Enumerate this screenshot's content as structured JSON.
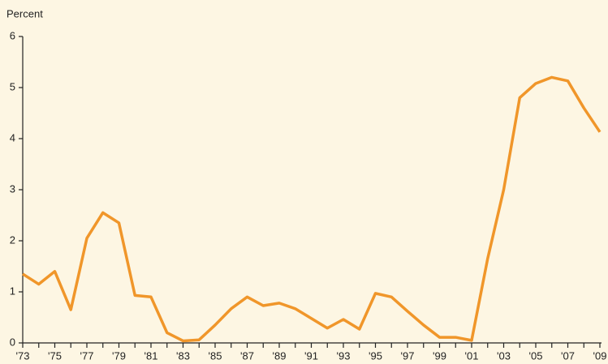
{
  "chart_data": {
    "type": "line",
    "y_label": "Percent",
    "categories": [
      "'73",
      null,
      "'75",
      null,
      "'77",
      null,
      "'79",
      null,
      "'81",
      null,
      "'83",
      null,
      "'85",
      null,
      "'87",
      null,
      "'89",
      null,
      "'91",
      null,
      "'93",
      null,
      "'95",
      null,
      "'97",
      null,
      "'99",
      null,
      "'01",
      null,
      "'03",
      null,
      "'05",
      null,
      "'07",
      null,
      "'09"
    ],
    "series": [
      {
        "color": "#f0962a",
        "values": [
          1.35,
          1.15,
          1.4,
          0.65,
          2.05,
          2.55,
          2.35,
          0.93,
          0.9,
          0.2,
          0.04,
          0.06,
          0.35,
          0.67,
          0.9,
          0.73,
          0.78,
          0.67,
          0.48,
          0.29,
          0.46,
          0.27,
          0.97,
          0.9,
          0.62,
          0.35,
          0.11,
          0.11,
          0.05,
          1.65,
          3.0,
          4.8,
          5.08,
          5.2,
          5.13,
          4.6,
          4.13
        ]
      }
    ],
    "ylim": [
      0,
      6
    ],
    "yticks": [
      0,
      1,
      2,
      3,
      4,
      5,
      6
    ]
  }
}
